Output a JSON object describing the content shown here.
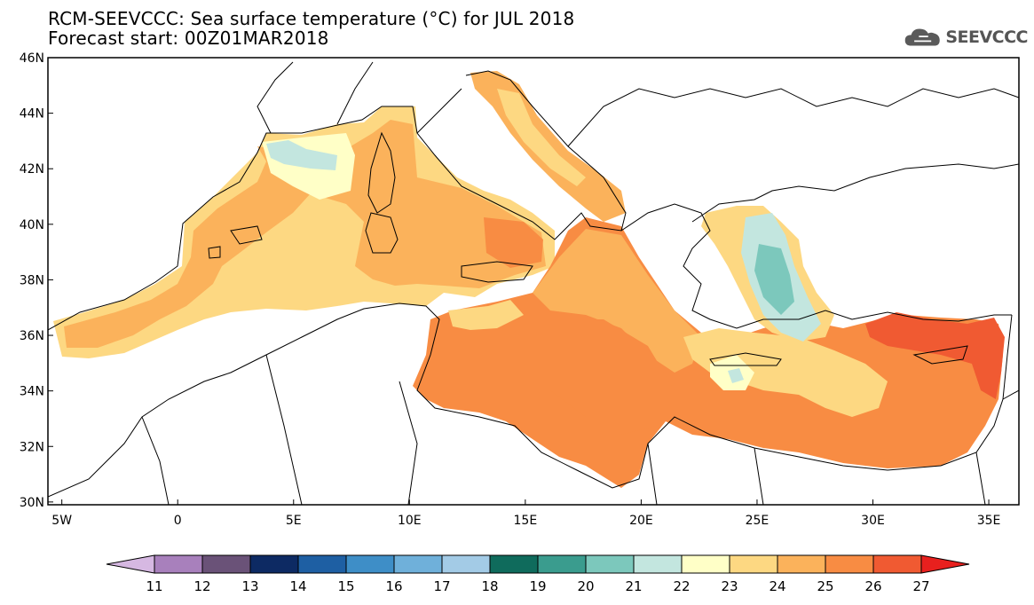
{
  "title": {
    "line1": "RCM-SEEVCCC: Sea surface temperature (°C) for JUL 2018",
    "line2": "Forecast start: 00Z01MAR2018"
  },
  "logo": {
    "text": "SEEVCCC"
  },
  "map": {
    "lon_range": [
      -5.6,
      36.3
    ],
    "lat_range": [
      29.9,
      46.0
    ],
    "lat_ticks": [
      {
        "value": 46,
        "label": "46N"
      },
      {
        "value": 44,
        "label": "44N"
      },
      {
        "value": 42,
        "label": "42N"
      },
      {
        "value": 40,
        "label": "40N"
      },
      {
        "value": 38,
        "label": "38N"
      },
      {
        "value": 36,
        "label": "36N"
      },
      {
        "value": 34,
        "label": "34N"
      },
      {
        "value": 32,
        "label": "32N"
      },
      {
        "value": 30,
        "label": "30N"
      }
    ],
    "lon_ticks": [
      {
        "value": -5,
        "label": "5W"
      },
      {
        "value": 0,
        "label": "0"
      },
      {
        "value": 5,
        "label": "5E"
      },
      {
        "value": 10,
        "label": "10E"
      },
      {
        "value": 15,
        "label": "15E"
      },
      {
        "value": 20,
        "label": "20E"
      },
      {
        "value": 25,
        "label": "25E"
      },
      {
        "value": 30,
        "label": "30E"
      },
      {
        "value": 35,
        "label": "35E"
      }
    ]
  },
  "colorbar": {
    "labels": [
      "11",
      "12",
      "13",
      "14",
      "15",
      "16",
      "17",
      "18",
      "19",
      "20",
      "21",
      "22",
      "23",
      "24",
      "25",
      "26",
      "27"
    ],
    "low_color": "#d6b8e2",
    "high_color": "#e8201e",
    "colors": [
      "#a880bc",
      "#6a5278",
      "#0d2a63",
      "#1e5fa3",
      "#3e8ec7",
      "#6fb0da",
      "#a3cbe6",
      "#0f6b5c",
      "#3a9c8e",
      "#7cc8bc",
      "#c3e6df",
      "#ffffc7",
      "#fdd882",
      "#fbb25b",
      "#f88c43",
      "#f05a32"
    ]
  }
}
